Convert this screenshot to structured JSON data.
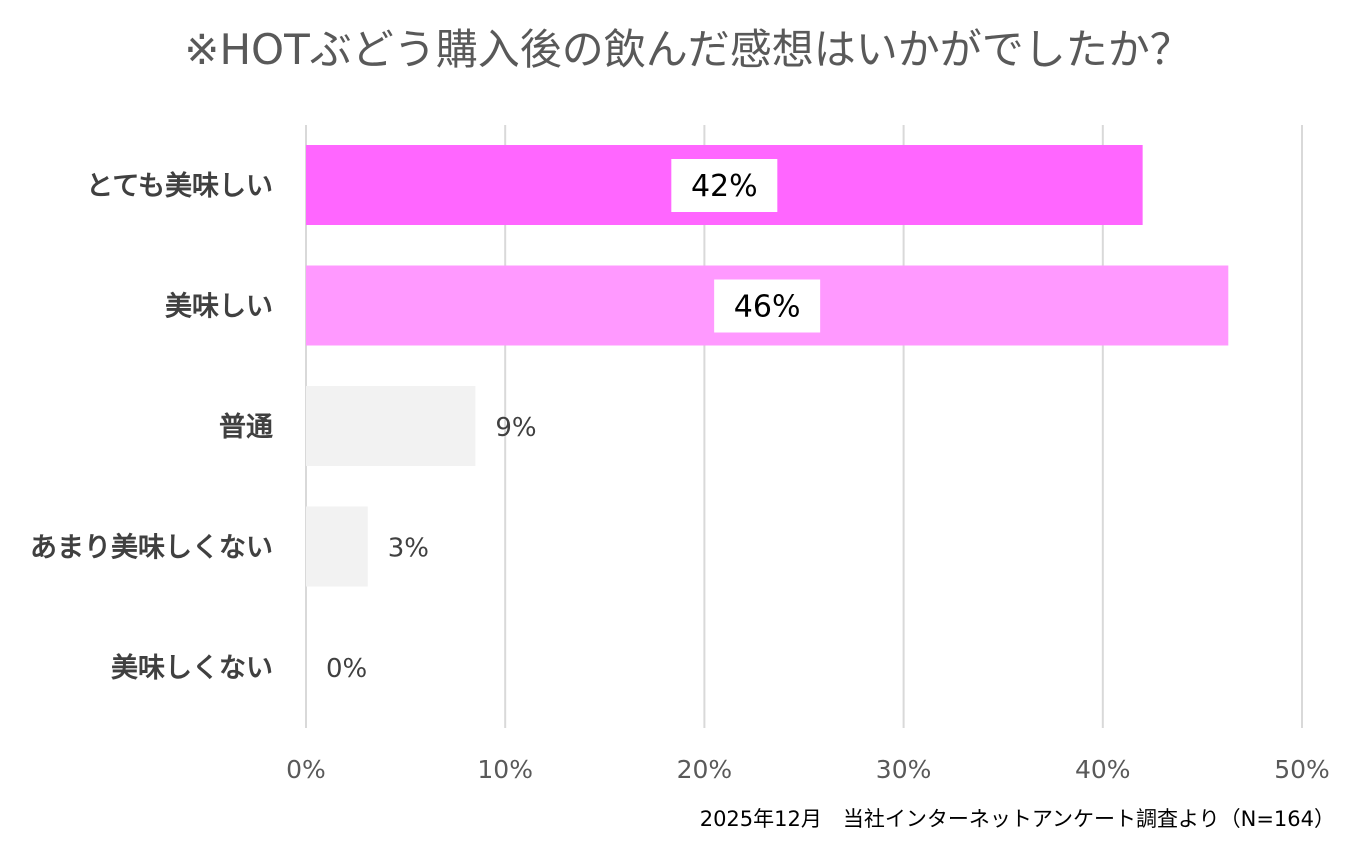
{
  "chart_data": {
    "type": "bar",
    "orientation": "horizontal",
    "title": "※HOTぶどう購入後の飲んだ感想はいかがでしたか？",
    "categories": [
      "とても美味しい",
      "美味しい",
      "普通",
      "あまり美味しくない",
      "美味しくない"
    ],
    "values": [
      42,
      46.3,
      8.5,
      3.1,
      0
    ],
    "data_labels": [
      "42%",
      "46%",
      "9%",
      "3%",
      "0%"
    ],
    "bar_colors": [
      "#ff66ff",
      "#ff99ff",
      "#f2f2f2",
      "#f2f2f2",
      "#f2f2f2"
    ],
    "label_inside": [
      true,
      true,
      false,
      false,
      false
    ],
    "xlim": [
      0,
      50
    ],
    "x_ticks": [
      0,
      10,
      20,
      30,
      40,
      50
    ],
    "x_tick_labels": [
      "0%",
      "10%",
      "20%",
      "30%",
      "40%",
      "50%"
    ],
    "grid": "vertical",
    "grid_color": "#d9d9d9",
    "legend": "none",
    "source_note": "2025年12月　当社インターネットアンケート調査より（N=164）"
  }
}
